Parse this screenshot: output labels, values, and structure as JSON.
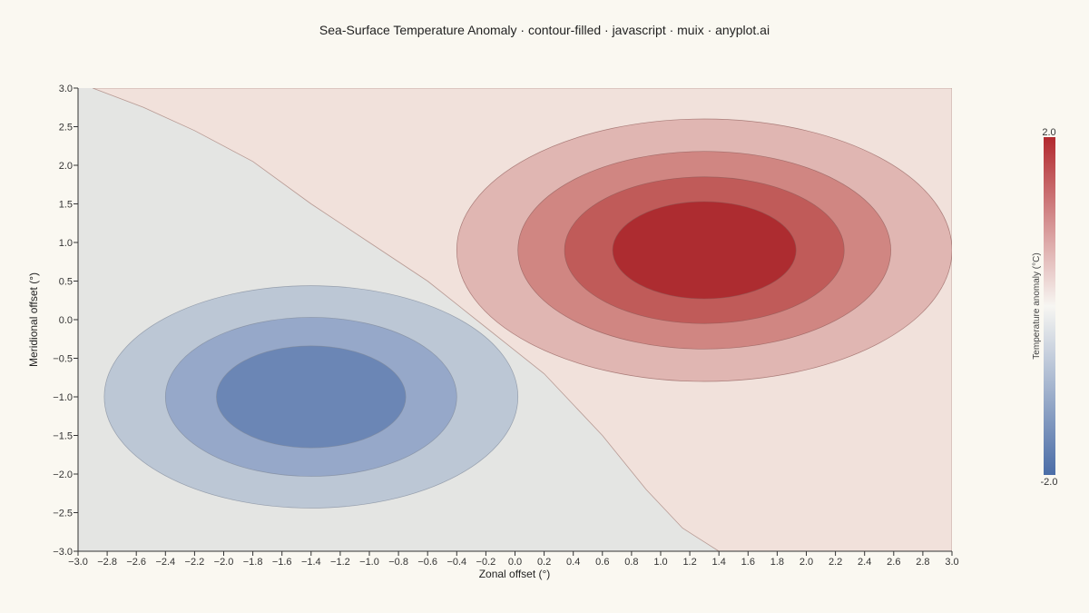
{
  "chart_data": {
    "type": "contour-filled",
    "title": "Sea-Surface Temperature Anomaly · contour-filled · javascript · muix · anyplot.ai",
    "xlabel": "Zonal offset (°)",
    "ylabel": "Meridional offset (°)",
    "xlim": [
      -3.0,
      3.0
    ],
    "ylim": [
      -3.0,
      3.0
    ],
    "x_ticks": [
      "−3.0",
      "−2.8",
      "−2.6",
      "−2.4",
      "−2.2",
      "−2.0",
      "−1.8",
      "−1.6",
      "−1.4",
      "−1.2",
      "−1.0",
      "−0.8",
      "−0.6",
      "−0.4",
      "−0.2",
      "0.0",
      "0.2",
      "0.4",
      "0.6",
      "0.8",
      "1.0",
      "1.2",
      "1.4",
      "1.6",
      "1.8",
      "2.0",
      "2.2",
      "2.4",
      "2.6",
      "2.8",
      "3.0"
    ],
    "y_ticks": [
      "−3.0",
      "−2.5",
      "−2.0",
      "−1.5",
      "−1.0",
      "−0.5",
      "0.0",
      "0.5",
      "1.0",
      "1.5",
      "2.0",
      "2.5",
      "3.0"
    ],
    "grid": false,
    "colorbar": {
      "title": "Temperature anomaly (°C)",
      "max_label": "2.0",
      "min_label": "-2.0",
      "range": [
        -2.0,
        2.0
      ],
      "colors": [
        "#4a6da7",
        "#f7f6f2",
        "#b2292e"
      ]
    },
    "warm_center": {
      "x": 1.3,
      "y": 0.9
    },
    "cool_center": {
      "x": -1.4,
      "y": -1.0
    },
    "levels": [
      {
        "shape": "halfplane",
        "fill": "#f1e1db",
        "value": 0.2
      },
      {
        "shape": "ellipse",
        "cx": 1.3,
        "cy": 0.9,
        "rx": 1.7,
        "ry": 1.7,
        "fill": "#e0b6b2",
        "value": 0.6
      },
      {
        "shape": "ellipse",
        "cx": 1.3,
        "cy": 0.9,
        "rx": 1.28,
        "ry": 1.28,
        "fill": "#d08682",
        "value": 1.0
      },
      {
        "shape": "ellipse",
        "cx": 1.3,
        "cy": 0.9,
        "rx": 0.96,
        "ry": 0.95,
        "fill": "#c05b59",
        "value": 1.4
      },
      {
        "shape": "ellipse",
        "cx": 1.3,
        "cy": 0.9,
        "rx": 0.63,
        "ry": 0.63,
        "fill": "#ad2c30",
        "value": 1.8
      },
      {
        "shape": "ellipse",
        "cx": -1.4,
        "cy": -1.0,
        "rx": 1.42,
        "ry": 1.44,
        "fill": "#bcc7d5",
        "value": -0.6
      },
      {
        "shape": "ellipse",
        "cx": -1.4,
        "cy": -1.0,
        "rx": 1.0,
        "ry": 1.03,
        "fill": "#96a8c9",
        "value": -1.0
      },
      {
        "shape": "ellipse",
        "cx": -1.4,
        "cy": -1.0,
        "rx": 0.65,
        "ry": 0.66,
        "fill": "#6b86b5",
        "value": -1.4
      }
    ],
    "zero_contour": [
      [
        -2.9,
        3.0
      ],
      [
        -2.55,
        2.75
      ],
      [
        -2.2,
        2.45
      ],
      [
        -1.8,
        2.05
      ],
      [
        -1.4,
        1.5
      ],
      [
        -1.0,
        1.0
      ],
      [
        -0.6,
        0.5
      ],
      [
        -0.2,
        -0.1
      ],
      [
        0.2,
        -0.7
      ],
      [
        0.6,
        -1.5
      ],
      [
        0.9,
        -2.2
      ],
      [
        1.15,
        -2.7
      ],
      [
        1.4,
        -3.0
      ]
    ],
    "base_fill": "#e4e5e3"
  }
}
